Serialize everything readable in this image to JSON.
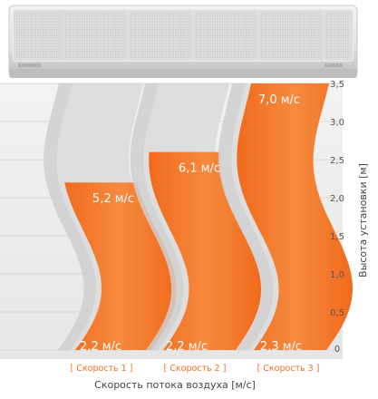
{
  "product": {
    "brand_label": "ROMMER",
    "model_label": "GUARD"
  },
  "colors": {
    "stream": "#f36b1f",
    "stream_shadow": "#c8c8c8",
    "speed_label": "#f07020"
  },
  "chart_data": {
    "type": "area",
    "title": "",
    "xlabel": "Скорость потока воздуха [м/с]",
    "ylabel": "Высота установки [м]",
    "ylim": [
      0,
      3.5
    ],
    "y_ticks": [
      "0",
      "0,5",
      "1,0",
      "1,5",
      "2,0",
      "2,5",
      "3,0",
      "3,5"
    ],
    "grid": true,
    "series": [
      {
        "name": "[ Скорость 1 ]",
        "reach_height_m": 2.2,
        "top_label": "5,2 м/с",
        "bottom_label": "2,2 м/с"
      },
      {
        "name": "[ Скорость 2 ]",
        "reach_height_m": 2.6,
        "top_label": "6,1 м/с",
        "bottom_label": "2,2 м/с"
      },
      {
        "name": "[ Скорость 3 ]",
        "reach_height_m": 3.5,
        "top_label": "7,0 м/с",
        "bottom_label": "2,3 м/с"
      }
    ]
  }
}
